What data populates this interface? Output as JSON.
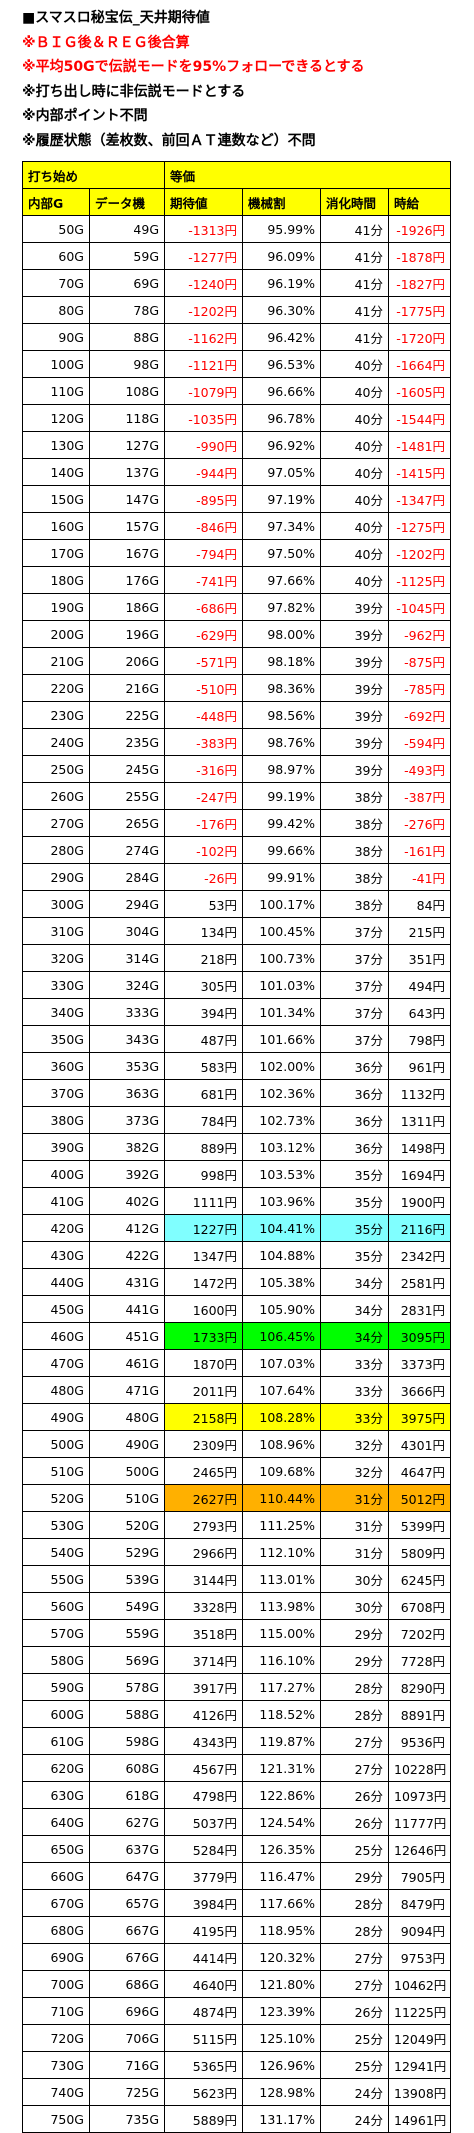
{
  "notes": [
    {
      "text": "■スマスロ秘宝伝_天井期待値",
      "red": false
    },
    {
      "text": "※ＢＩＧ後＆ＲＥＧ後合算",
      "red": true
    },
    {
      "text": "※平均50Gで伝説モードを95%フォローできるとする",
      "red": true
    },
    {
      "text": "※打ち出し時に非伝説モードとする",
      "red": false
    },
    {
      "text": "※内部ポイント不問",
      "red": false
    },
    {
      "text": "※履歴状態（差枚数、前回ＡＴ連数など）不問",
      "red": false
    }
  ],
  "table": {
    "top_headers": [
      "打ち始め",
      "等価"
    ],
    "headers": [
      "内部G",
      "データ機",
      "期待値",
      "機械割",
      "消化時間",
      "時給"
    ],
    "rows": [
      [
        "50G",
        "49G",
        "-1313円",
        "95.99%",
        "41分",
        "-1926円"
      ],
      [
        "60G",
        "59G",
        "-1277円",
        "96.09%",
        "41分",
        "-1878円"
      ],
      [
        "70G",
        "69G",
        "-1240円",
        "96.19%",
        "41分",
        "-1827円"
      ],
      [
        "80G",
        "78G",
        "-1202円",
        "96.30%",
        "41分",
        "-1775円"
      ],
      [
        "90G",
        "88G",
        "-1162円",
        "96.42%",
        "41分",
        "-1720円"
      ],
      [
        "100G",
        "98G",
        "-1121円",
        "96.53%",
        "40分",
        "-1664円"
      ],
      [
        "110G",
        "108G",
        "-1079円",
        "96.66%",
        "40分",
        "-1605円"
      ],
      [
        "120G",
        "118G",
        "-1035円",
        "96.78%",
        "40分",
        "-1544円"
      ],
      [
        "130G",
        "127G",
        "-990円",
        "96.92%",
        "40分",
        "-1481円"
      ],
      [
        "140G",
        "137G",
        "-944円",
        "97.05%",
        "40分",
        "-1415円"
      ],
      [
        "150G",
        "147G",
        "-895円",
        "97.19%",
        "40分",
        "-1347円"
      ],
      [
        "160G",
        "157G",
        "-846円",
        "97.34%",
        "40分",
        "-1275円"
      ],
      [
        "170G",
        "167G",
        "-794円",
        "97.50%",
        "40分",
        "-1202円"
      ],
      [
        "180G",
        "176G",
        "-741円",
        "97.66%",
        "40分",
        "-1125円"
      ],
      [
        "190G",
        "186G",
        "-686円",
        "97.82%",
        "39分",
        "-1045円"
      ],
      [
        "200G",
        "196G",
        "-629円",
        "98.00%",
        "39分",
        "-962円"
      ],
      [
        "210G",
        "206G",
        "-571円",
        "98.18%",
        "39分",
        "-875円"
      ],
      [
        "220G",
        "216G",
        "-510円",
        "98.36%",
        "39分",
        "-785円"
      ],
      [
        "230G",
        "225G",
        "-448円",
        "98.56%",
        "39分",
        "-692円"
      ],
      [
        "240G",
        "235G",
        "-383円",
        "98.76%",
        "39分",
        "-594円"
      ],
      [
        "250G",
        "245G",
        "-316円",
        "98.97%",
        "39分",
        "-493円"
      ],
      [
        "260G",
        "255G",
        "-247円",
        "99.19%",
        "38分",
        "-387円"
      ],
      [
        "270G",
        "265G",
        "-176円",
        "99.42%",
        "38分",
        "-276円"
      ],
      [
        "280G",
        "274G",
        "-102円",
        "99.66%",
        "38分",
        "-161円"
      ],
      [
        "290G",
        "284G",
        "-26円",
        "99.91%",
        "38分",
        "-41円"
      ],
      [
        "300G",
        "294G",
        "53円",
        "100.17%",
        "38分",
        "84円"
      ],
      [
        "310G",
        "304G",
        "134円",
        "100.45%",
        "37分",
        "215円"
      ],
      [
        "320G",
        "314G",
        "218円",
        "100.73%",
        "37分",
        "351円"
      ],
      [
        "330G",
        "324G",
        "305円",
        "101.03%",
        "37分",
        "494円"
      ],
      [
        "340G",
        "333G",
        "394円",
        "101.34%",
        "37分",
        "643円"
      ],
      [
        "350G",
        "343G",
        "487円",
        "101.66%",
        "37分",
        "798円"
      ],
      [
        "360G",
        "353G",
        "583円",
        "102.00%",
        "36分",
        "961円"
      ],
      [
        "370G",
        "363G",
        "681円",
        "102.36%",
        "36分",
        "1132円"
      ],
      [
        "380G",
        "373G",
        "784円",
        "102.73%",
        "36分",
        "1311円"
      ],
      [
        "390G",
        "382G",
        "889円",
        "103.12%",
        "36分",
        "1498円"
      ],
      [
        "400G",
        "392G",
        "998円",
        "103.53%",
        "35分",
        "1694円"
      ],
      [
        "410G",
        "402G",
        "1111円",
        "103.96%",
        "35分",
        "1900円"
      ],
      [
        "420G",
        "412G",
        "1227円",
        "104.41%",
        "35分",
        "2116円"
      ],
      [
        "430G",
        "422G",
        "1347円",
        "104.88%",
        "35分",
        "2342円"
      ],
      [
        "440G",
        "431G",
        "1472円",
        "105.38%",
        "34分",
        "2581円"
      ],
      [
        "450G",
        "441G",
        "1600円",
        "105.90%",
        "34分",
        "2831円"
      ],
      [
        "460G",
        "451G",
        "1733円",
        "106.45%",
        "34分",
        "3095円"
      ],
      [
        "470G",
        "461G",
        "1870円",
        "107.03%",
        "33分",
        "3373円"
      ],
      [
        "480G",
        "471G",
        "2011円",
        "107.64%",
        "33分",
        "3666円"
      ],
      [
        "490G",
        "480G",
        "2158円",
        "108.28%",
        "33分",
        "3975円"
      ],
      [
        "500G",
        "490G",
        "2309円",
        "108.96%",
        "32分",
        "4301円"
      ],
      [
        "510G",
        "500G",
        "2465円",
        "109.68%",
        "32分",
        "4647円"
      ],
      [
        "520G",
        "510G",
        "2627円",
        "110.44%",
        "31分",
        "5012円"
      ],
      [
        "530G",
        "520G",
        "2793円",
        "111.25%",
        "31分",
        "5399円"
      ],
      [
        "540G",
        "529G",
        "2966円",
        "112.10%",
        "31分",
        "5809円"
      ],
      [
        "550G",
        "539G",
        "3144円",
        "113.01%",
        "30分",
        "6245円"
      ],
      [
        "560G",
        "549G",
        "3328円",
        "113.98%",
        "30分",
        "6708円"
      ],
      [
        "570G",
        "559G",
        "3518円",
        "115.00%",
        "29分",
        "7202円"
      ],
      [
        "580G",
        "569G",
        "3714円",
        "116.10%",
        "29分",
        "7728円"
      ],
      [
        "590G",
        "578G",
        "3917円",
        "117.27%",
        "28分",
        "8290円"
      ],
      [
        "600G",
        "588G",
        "4126円",
        "118.52%",
        "28分",
        "8891円"
      ],
      [
        "610G",
        "598G",
        "4343円",
        "119.87%",
        "27分",
        "9536円"
      ],
      [
        "620G",
        "608G",
        "4567円",
        "121.31%",
        "27分",
        "10228円"
      ],
      [
        "630G",
        "618G",
        "4798円",
        "122.86%",
        "26分",
        "10973円"
      ],
      [
        "640G",
        "627G",
        "5037円",
        "124.54%",
        "26分",
        "11777円"
      ],
      [
        "650G",
        "637G",
        "5284円",
        "126.35%",
        "25分",
        "12646円"
      ],
      [
        "660G",
        "647G",
        "3779円",
        "116.47%",
        "29分",
        "7905円"
      ],
      [
        "670G",
        "657G",
        "3984円",
        "117.66%",
        "28分",
        "8479円"
      ],
      [
        "680G",
        "667G",
        "4195円",
        "118.95%",
        "28分",
        "9094円"
      ],
      [
        "690G",
        "676G",
        "4414円",
        "120.32%",
        "27分",
        "9753円"
      ],
      [
        "700G",
        "686G",
        "4640円",
        "121.80%",
        "27分",
        "10462円"
      ],
      [
        "710G",
        "696G",
        "4874円",
        "123.39%",
        "26分",
        "11225円"
      ],
      [
        "720G",
        "706G",
        "5115円",
        "125.10%",
        "25分",
        "12049円"
      ],
      [
        "730G",
        "716G",
        "5365円",
        "126.96%",
        "25分",
        "12941円"
      ],
      [
        "740G",
        "725G",
        "5623円",
        "128.98%",
        "24分",
        "13908円"
      ],
      [
        "750G",
        "735G",
        "5889円",
        "131.17%",
        "24分",
        "14961円"
      ]
    ],
    "highlights": {
      "37": "cyan",
      "41": "green",
      "44": "yellow",
      "47": "orange"
    },
    "colors": {
      "negative": "#ff0000",
      "header": "#ffff00",
      "cyan": "#80ffff",
      "green": "#00ff00",
      "yellow": "#ffff00",
      "orange": "#ffb000"
    }
  }
}
